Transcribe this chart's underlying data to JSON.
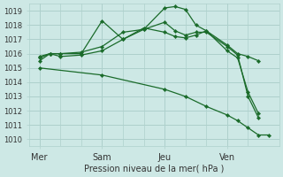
{
  "background_color": "#cde8e5",
  "grid_color": "#aed0cc",
  "line_color": "#1a6b2a",
  "title": "Pression niveau de la mer( hPa )",
  "ylim": [
    1009.5,
    1019.5
  ],
  "yticks": [
    1010,
    1011,
    1012,
    1013,
    1014,
    1015,
    1016,
    1017,
    1018,
    1019
  ],
  "xtick_labels": [
    "Mer",
    "Sam",
    "Jeu",
    "Ven"
  ],
  "xtick_positions": [
    0,
    3,
    6,
    9
  ],
  "xlim": [
    -0.5,
    11.5
  ],
  "series": [
    {
      "x": [
        0,
        0.5,
        1,
        2,
        3,
        4,
        5,
        6,
        6.5,
        7,
        7.5,
        8,
        9,
        9.5,
        10,
        10.5
      ],
      "y": [
        1015.8,
        1016.0,
        1016.0,
        1016.1,
        1016.5,
        1017.5,
        1017.7,
        1019.2,
        1019.3,
        1019.1,
        1018.0,
        1017.6,
        1016.6,
        1016.0,
        1015.8,
        1015.5
      ]
    },
    {
      "x": [
        0,
        0.5,
        1,
        2,
        3,
        4,
        5,
        6,
        6.5,
        7,
        7.5,
        8,
        9,
        9.5,
        10,
        10.5
      ],
      "y": [
        1015.7,
        1016.0,
        1016.0,
        1016.0,
        1018.3,
        1017.0,
        1017.7,
        1018.2,
        1017.6,
        1017.3,
        1017.5,
        1017.5,
        1016.5,
        1015.9,
        1013.0,
        1011.5
      ]
    },
    {
      "x": [
        0,
        0.5,
        1,
        2,
        3,
        4,
        5,
        6,
        6.5,
        7,
        7.5,
        8,
        9,
        9.5,
        10,
        10.5
      ],
      "y": [
        1015.5,
        1016.0,
        1015.8,
        1015.9,
        1016.2,
        1017.0,
        1017.8,
        1017.5,
        1017.2,
        1017.1,
        1017.3,
        1017.6,
        1016.2,
        1015.7,
        1013.3,
        1011.8
      ]
    },
    {
      "x": [
        0,
        3,
        6,
        7,
        8,
        9,
        9.5,
        10,
        10.5,
        11.0
      ],
      "y": [
        1015.0,
        1014.5,
        1013.5,
        1013.0,
        1012.3,
        1011.7,
        1011.3,
        1010.8,
        1010.3,
        1010.3
      ]
    }
  ]
}
